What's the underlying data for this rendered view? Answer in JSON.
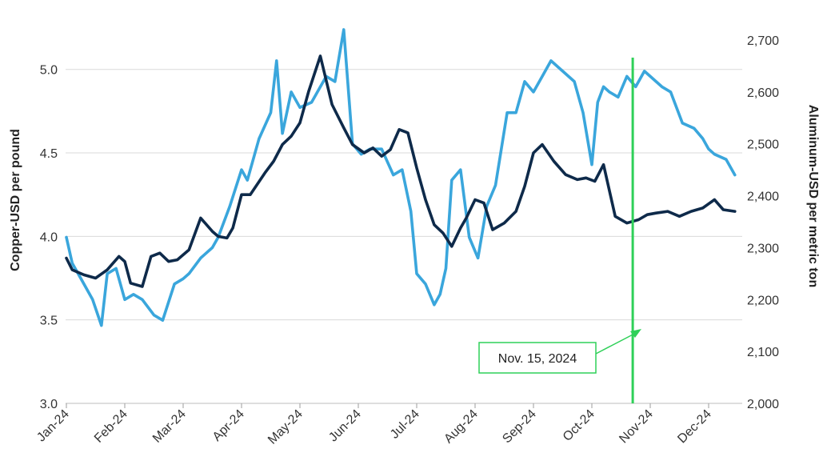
{
  "chart_data": {
    "type": "line",
    "xlabel": "",
    "ylabel_left": "Copper-USD per pound",
    "ylabel_right": "Aluminum-USD per metric ton",
    "x_ticks": [
      "Jan-24",
      "Feb-24",
      "Mar-24",
      "Apr-24",
      "May-24",
      "Jun-24",
      "Jul-24",
      "Aug-24",
      "Sep-24",
      "Oct-24",
      "Nov-24",
      "Dec-24"
    ],
    "left_ticks": [
      "3.0",
      "3.5",
      "4.0",
      "4.5",
      "5.0"
    ],
    "right_ticks": [
      "2,000",
      "2,100",
      "2,200",
      "2,300",
      "2,400",
      "2,500",
      "2,600",
      "2,700"
    ],
    "ylim_left": [
      3.0,
      5.2
    ],
    "ylim_right": [
      2000,
      2700
    ],
    "grid": true,
    "colors": {
      "copper": "#0e2a4a",
      "aluminum": "#3aa6dc",
      "marker": "#2fd058",
      "grid": "#d9d9d9"
    },
    "series": [
      {
        "axis": "left",
        "x": [
          0,
          0.1,
          0.3,
          0.5,
          0.7,
          0.9,
          1.0,
          1.1,
          1.3,
          1.45,
          1.6,
          1.75,
          1.9,
          2.1,
          2.3,
          2.5,
          2.6,
          2.75,
          2.85,
          3.0,
          3.15,
          3.4,
          3.55,
          3.7,
          3.85,
          4.0,
          4.15,
          4.35,
          4.55,
          4.75,
          4.9,
          5.1,
          5.25,
          5.4,
          5.55,
          5.7,
          5.85,
          6.0,
          6.15,
          6.3,
          6.45,
          6.6,
          6.75,
          6.85,
          7.0,
          7.15,
          7.3,
          7.5,
          7.7,
          7.85,
          8.0,
          8.15,
          8.35,
          8.55,
          8.75,
          8.9,
          9.05,
          9.2,
          9.4,
          9.6,
          9.8,
          9.95,
          10.1,
          10.3,
          10.5,
          10.7,
          10.9,
          11.1,
          11.25,
          11.45
        ],
        "values": [
          3.87,
          3.8,
          3.77,
          3.75,
          3.8,
          3.88,
          3.85,
          3.72,
          3.7,
          3.88,
          3.9,
          3.85,
          3.86,
          3.92,
          4.11,
          4.03,
          4.0,
          3.99,
          4.05,
          4.25,
          4.25,
          4.38,
          4.45,
          4.55,
          4.6,
          4.68,
          4.87,
          5.08,
          4.79,
          4.65,
          4.55,
          4.5,
          4.53,
          4.48,
          4.52,
          4.64,
          4.62,
          4.41,
          4.22,
          4.07,
          4.02,
          3.94,
          4.05,
          4.11,
          4.22,
          4.2,
          4.04,
          4.08,
          4.15,
          4.3,
          4.5,
          4.55,
          4.45,
          4.37,
          4.34,
          4.35,
          4.33,
          4.43,
          4.12,
          4.08,
          4.1,
          4.13,
          4.14,
          4.15,
          4.12,
          4.15,
          4.17,
          4.22,
          4.16,
          4.15
        ]
      },
      {
        "axis": "right",
        "x": [
          0,
          0.1,
          0.25,
          0.45,
          0.6,
          0.7,
          0.85,
          1.0,
          1.15,
          1.3,
          1.5,
          1.65,
          1.85,
          2.0,
          2.1,
          2.3,
          2.5,
          2.6,
          2.8,
          3.0,
          3.1,
          3.3,
          3.5,
          3.6,
          3.7,
          3.85,
          4.0,
          4.2,
          4.45,
          4.6,
          4.75,
          4.9,
          5.05,
          5.2,
          5.4,
          5.6,
          5.75,
          5.9,
          6.0,
          6.15,
          6.3,
          6.4,
          6.5,
          6.6,
          6.75,
          6.9,
          7.05,
          7.2,
          7.35,
          7.55,
          7.7,
          7.85,
          8.0,
          8.15,
          8.3,
          8.5,
          8.7,
          8.85,
          9.0,
          9.1,
          9.2,
          9.3,
          9.45,
          9.6,
          9.75,
          9.9,
          10.0,
          10.2,
          10.35,
          10.55,
          10.75,
          10.9,
          11.0,
          11.1,
          11.3,
          11.45
        ],
        "values": [
          2320,
          2270,
          2240,
          2200,
          2150,
          2250,
          2260,
          2200,
          2210,
          2200,
          2170,
          2160,
          2230,
          2240,
          2250,
          2280,
          2300,
          2320,
          2380,
          2450,
          2430,
          2510,
          2560,
          2660,
          2520,
          2600,
          2570,
          2580,
          2630,
          2620,
          2720,
          2500,
          2480,
          2490,
          2490,
          2440,
          2450,
          2370,
          2250,
          2230,
          2190,
          2210,
          2260,
          2430,
          2450,
          2320,
          2280,
          2380,
          2420,
          2560,
          2560,
          2620,
          2600,
          2630,
          2660,
          2640,
          2620,
          2560,
          2460,
          2580,
          2610,
          2600,
          2590,
          2630,
          2610,
          2640,
          2630,
          2610,
          2600,
          2540,
          2530,
          2510,
          2490,
          2480,
          2470,
          2440
        ]
      }
    ],
    "annotation": {
      "label": "Nov. 15, 2024",
      "x": 9.7
    }
  }
}
